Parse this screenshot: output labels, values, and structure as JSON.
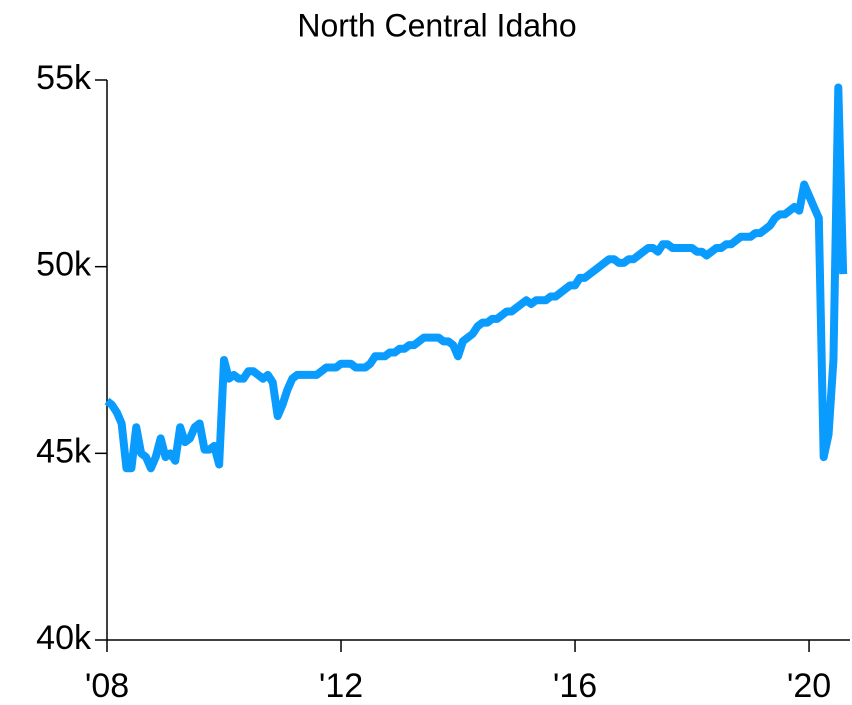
{
  "chart_data": {
    "type": "line",
    "title": "North Central Idaho",
    "x": [
      2008.0,
      2008.083,
      2008.167,
      2008.25,
      2008.333,
      2008.417,
      2008.5,
      2008.583,
      2008.667,
      2008.75,
      2008.833,
      2008.917,
      2009.0,
      2009.083,
      2009.167,
      2009.25,
      2009.333,
      2009.417,
      2009.5,
      2009.583,
      2009.667,
      2009.75,
      2009.833,
      2009.917,
      2010.0,
      2010.083,
      2010.167,
      2010.25,
      2010.333,
      2010.417,
      2010.5,
      2010.583,
      2010.667,
      2010.75,
      2010.833,
      2010.917,
      2011.0,
      2011.083,
      2011.167,
      2011.25,
      2011.333,
      2011.417,
      2011.5,
      2011.583,
      2011.667,
      2011.75,
      2011.833,
      2011.917,
      2012.0,
      2012.083,
      2012.167,
      2012.25,
      2012.333,
      2012.417,
      2012.5,
      2012.583,
      2012.667,
      2012.75,
      2012.833,
      2012.917,
      2013.0,
      2013.083,
      2013.167,
      2013.25,
      2013.333,
      2013.417,
      2013.5,
      2013.583,
      2013.667,
      2013.75,
      2013.833,
      2013.917,
      2014.0,
      2014.083,
      2014.167,
      2014.25,
      2014.333,
      2014.417,
      2014.5,
      2014.583,
      2014.667,
      2014.75,
      2014.833,
      2014.917,
      2015.0,
      2015.083,
      2015.167,
      2015.25,
      2015.333,
      2015.417,
      2015.5,
      2015.583,
      2015.667,
      2015.75,
      2015.833,
      2015.917,
      2016.0,
      2016.083,
      2016.167,
      2016.25,
      2016.333,
      2016.417,
      2016.5,
      2016.583,
      2016.667,
      2016.75,
      2016.833,
      2016.917,
      2017.0,
      2017.083,
      2017.167,
      2017.25,
      2017.333,
      2017.417,
      2017.5,
      2017.583,
      2017.667,
      2017.75,
      2017.833,
      2017.917,
      2018.0,
      2018.083,
      2018.167,
      2018.25,
      2018.333,
      2018.417,
      2018.5,
      2018.583,
      2018.667,
      2018.75,
      2018.833,
      2018.917,
      2019.0,
      2019.083,
      2019.167,
      2019.25,
      2019.333,
      2019.417,
      2019.5,
      2019.583,
      2019.667,
      2019.75,
      2019.833,
      2019.917,
      2020.0,
      2020.083,
      2020.167,
      2020.25,
      2020.333,
      2020.417,
      2020.5,
      2020.583
    ],
    "series": [
      {
        "name": "North Central Idaho",
        "color": "#0a9bff",
        "values": [
          46400,
          46300,
          46100,
          45800,
          44600,
          44600,
          45700,
          45000,
          44900,
          44600,
          44900,
          45400,
          44900,
          45000,
          44800,
          45700,
          45300,
          45400,
          45700,
          45800,
          45100,
          45100,
          45200,
          44700,
          47500,
          47000,
          47100,
          47000,
          47000,
          47200,
          47200,
          47100,
          47000,
          47100,
          46900,
          46000,
          46300,
          46700,
          47000,
          47100,
          47100,
          47100,
          47100,
          47100,
          47200,
          47300,
          47300,
          47300,
          47400,
          47400,
          47400,
          47300,
          47300,
          47300,
          47400,
          47600,
          47600,
          47600,
          47700,
          47700,
          47800,
          47800,
          47900,
          47900,
          48000,
          48100,
          48100,
          48100,
          48100,
          48000,
          48000,
          47900,
          47600,
          48000,
          48100,
          48200,
          48400,
          48500,
          48500,
          48600,
          48600,
          48700,
          48800,
          48800,
          48900,
          49000,
          49100,
          49000,
          49100,
          49100,
          49100,
          49200,
          49200,
          49300,
          49400,
          49500,
          49500,
          49700,
          49700,
          49800,
          49900,
          50000,
          50100,
          50200,
          50200,
          50100,
          50100,
          50200,
          50200,
          50300,
          50400,
          50500,
          50500,
          50400,
          50600,
          50600,
          50500,
          50500,
          50500,
          50500,
          50500,
          50400,
          50400,
          50300,
          50400,
          50500,
          50500,
          50600,
          50600,
          50700,
          50800,
          50800,
          50800,
          50900,
          50900,
          51000,
          51100,
          51300,
          51400,
          51400,
          51500,
          51600,
          51500,
          52200,
          51900,
          51600,
          51300,
          44900,
          45500,
          47500,
          54800,
          49800
        ]
      }
    ],
    "xlim": [
      2008,
      2020.7
    ],
    "xticks": [
      {
        "value": 2008,
        "label": "'08"
      },
      {
        "value": 2012,
        "label": "'12"
      },
      {
        "value": 2016,
        "label": "'16"
      },
      {
        "value": 2020,
        "label": "'20"
      }
    ],
    "ylim": [
      40000,
      55000
    ],
    "yticks": [
      {
        "value": 40000,
        "label": "40k"
      },
      {
        "value": 45000,
        "label": "45k"
      },
      {
        "value": 50000,
        "label": "50k"
      },
      {
        "value": 55000,
        "label": "55k"
      }
    ]
  }
}
